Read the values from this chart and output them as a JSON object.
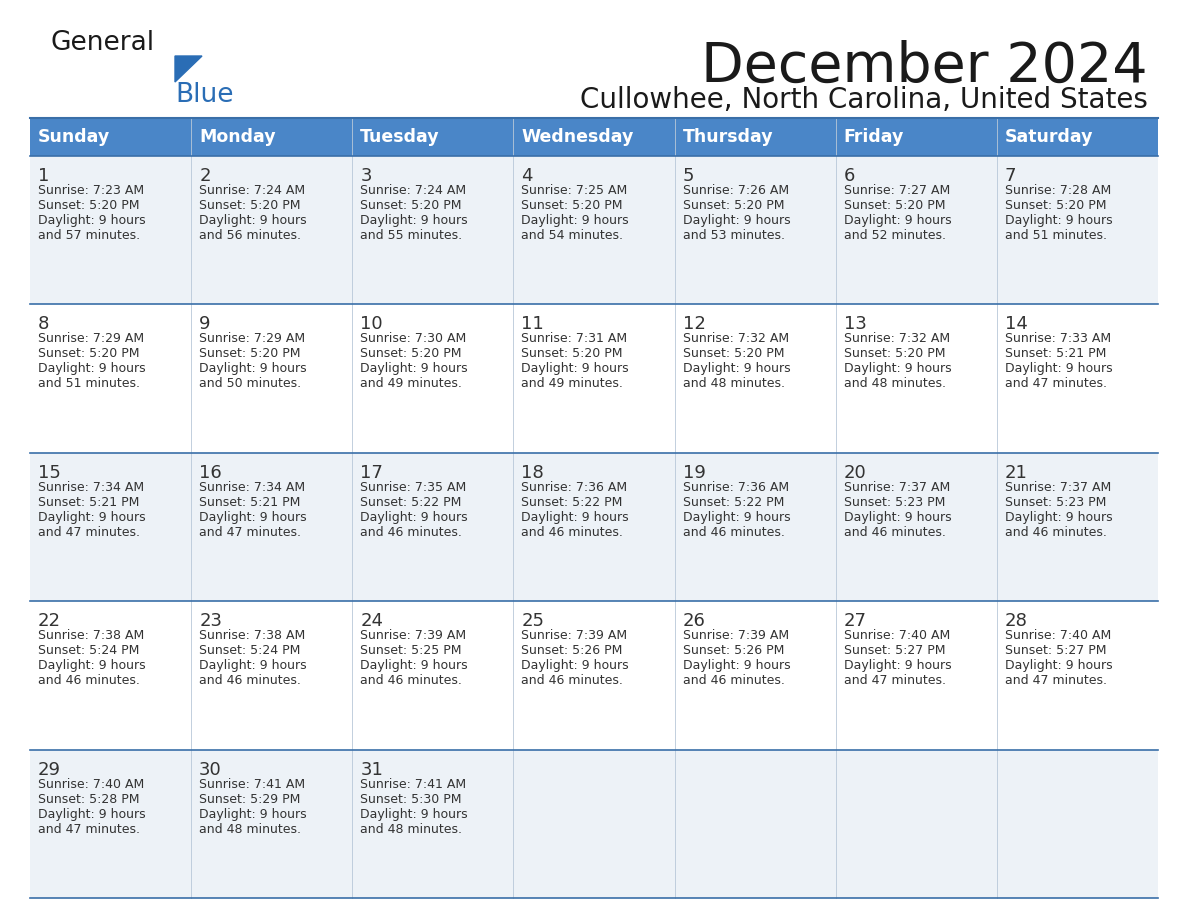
{
  "title": "December 2024",
  "subtitle": "Cullowhee, North Carolina, United States",
  "days_of_week": [
    "Sunday",
    "Monday",
    "Tuesday",
    "Wednesday",
    "Thursday",
    "Friday",
    "Saturday"
  ],
  "header_bg_color": "#4a86c8",
  "header_text_color": "#ffffff",
  "cell_bg_even": "#edf2f7",
  "cell_bg_odd": "#ffffff",
  "row_line_color": "#3a6fa8",
  "text_color": "#333333",
  "title_color": "#1a1a1a",
  "logo_general_color": "#1a1a1a",
  "logo_blue_color": "#2a6db5",
  "logo_triangle_color": "#2a6db5",
  "calendar_data": [
    [
      {
        "day": 1,
        "sunrise": "7:23 AM",
        "sunset": "5:20 PM",
        "daylight_hrs": 9,
        "daylight_min": "57 minutes."
      },
      {
        "day": 2,
        "sunrise": "7:24 AM",
        "sunset": "5:20 PM",
        "daylight_hrs": 9,
        "daylight_min": "56 minutes."
      },
      {
        "day": 3,
        "sunrise": "7:24 AM",
        "sunset": "5:20 PM",
        "daylight_hrs": 9,
        "daylight_min": "55 minutes."
      },
      {
        "day": 4,
        "sunrise": "7:25 AM",
        "sunset": "5:20 PM",
        "daylight_hrs": 9,
        "daylight_min": "54 minutes."
      },
      {
        "day": 5,
        "sunrise": "7:26 AM",
        "sunset": "5:20 PM",
        "daylight_hrs": 9,
        "daylight_min": "53 minutes."
      },
      {
        "day": 6,
        "sunrise": "7:27 AM",
        "sunset": "5:20 PM",
        "daylight_hrs": 9,
        "daylight_min": "52 minutes."
      },
      {
        "day": 7,
        "sunrise": "7:28 AM",
        "sunset": "5:20 PM",
        "daylight_hrs": 9,
        "daylight_min": "51 minutes."
      }
    ],
    [
      {
        "day": 8,
        "sunrise": "7:29 AM",
        "sunset": "5:20 PM",
        "daylight_hrs": 9,
        "daylight_min": "51 minutes."
      },
      {
        "day": 9,
        "sunrise": "7:29 AM",
        "sunset": "5:20 PM",
        "daylight_hrs": 9,
        "daylight_min": "50 minutes."
      },
      {
        "day": 10,
        "sunrise": "7:30 AM",
        "sunset": "5:20 PM",
        "daylight_hrs": 9,
        "daylight_min": "49 minutes."
      },
      {
        "day": 11,
        "sunrise": "7:31 AM",
        "sunset": "5:20 PM",
        "daylight_hrs": 9,
        "daylight_min": "49 minutes."
      },
      {
        "day": 12,
        "sunrise": "7:32 AM",
        "sunset": "5:20 PM",
        "daylight_hrs": 9,
        "daylight_min": "48 minutes."
      },
      {
        "day": 13,
        "sunrise": "7:32 AM",
        "sunset": "5:20 PM",
        "daylight_hrs": 9,
        "daylight_min": "48 minutes."
      },
      {
        "day": 14,
        "sunrise": "7:33 AM",
        "sunset": "5:21 PM",
        "daylight_hrs": 9,
        "daylight_min": "47 minutes."
      }
    ],
    [
      {
        "day": 15,
        "sunrise": "7:34 AM",
        "sunset": "5:21 PM",
        "daylight_hrs": 9,
        "daylight_min": "47 minutes."
      },
      {
        "day": 16,
        "sunrise": "7:34 AM",
        "sunset": "5:21 PM",
        "daylight_hrs": 9,
        "daylight_min": "47 minutes."
      },
      {
        "day": 17,
        "sunrise": "7:35 AM",
        "sunset": "5:22 PM",
        "daylight_hrs": 9,
        "daylight_min": "46 minutes."
      },
      {
        "day": 18,
        "sunrise": "7:36 AM",
        "sunset": "5:22 PM",
        "daylight_hrs": 9,
        "daylight_min": "46 minutes."
      },
      {
        "day": 19,
        "sunrise": "7:36 AM",
        "sunset": "5:22 PM",
        "daylight_hrs": 9,
        "daylight_min": "46 minutes."
      },
      {
        "day": 20,
        "sunrise": "7:37 AM",
        "sunset": "5:23 PM",
        "daylight_hrs": 9,
        "daylight_min": "46 minutes."
      },
      {
        "day": 21,
        "sunrise": "7:37 AM",
        "sunset": "5:23 PM",
        "daylight_hrs": 9,
        "daylight_min": "46 minutes."
      }
    ],
    [
      {
        "day": 22,
        "sunrise": "7:38 AM",
        "sunset": "5:24 PM",
        "daylight_hrs": 9,
        "daylight_min": "46 minutes."
      },
      {
        "day": 23,
        "sunrise": "7:38 AM",
        "sunset": "5:24 PM",
        "daylight_hrs": 9,
        "daylight_min": "46 minutes."
      },
      {
        "day": 24,
        "sunrise": "7:39 AM",
        "sunset": "5:25 PM",
        "daylight_hrs": 9,
        "daylight_min": "46 minutes."
      },
      {
        "day": 25,
        "sunrise": "7:39 AM",
        "sunset": "5:26 PM",
        "daylight_hrs": 9,
        "daylight_min": "46 minutes."
      },
      {
        "day": 26,
        "sunrise": "7:39 AM",
        "sunset": "5:26 PM",
        "daylight_hrs": 9,
        "daylight_min": "46 minutes."
      },
      {
        "day": 27,
        "sunrise": "7:40 AM",
        "sunset": "5:27 PM",
        "daylight_hrs": 9,
        "daylight_min": "47 minutes."
      },
      {
        "day": 28,
        "sunrise": "7:40 AM",
        "sunset": "5:27 PM",
        "daylight_hrs": 9,
        "daylight_min": "47 minutes."
      }
    ],
    [
      {
        "day": 29,
        "sunrise": "7:40 AM",
        "sunset": "5:28 PM",
        "daylight_hrs": 9,
        "daylight_min": "47 minutes."
      },
      {
        "day": 30,
        "sunrise": "7:41 AM",
        "sunset": "5:29 PM",
        "daylight_hrs": 9,
        "daylight_min": "48 minutes."
      },
      {
        "day": 31,
        "sunrise": "7:41 AM",
        "sunset": "5:30 PM",
        "daylight_hrs": 9,
        "daylight_min": "48 minutes."
      },
      null,
      null,
      null,
      null
    ]
  ]
}
